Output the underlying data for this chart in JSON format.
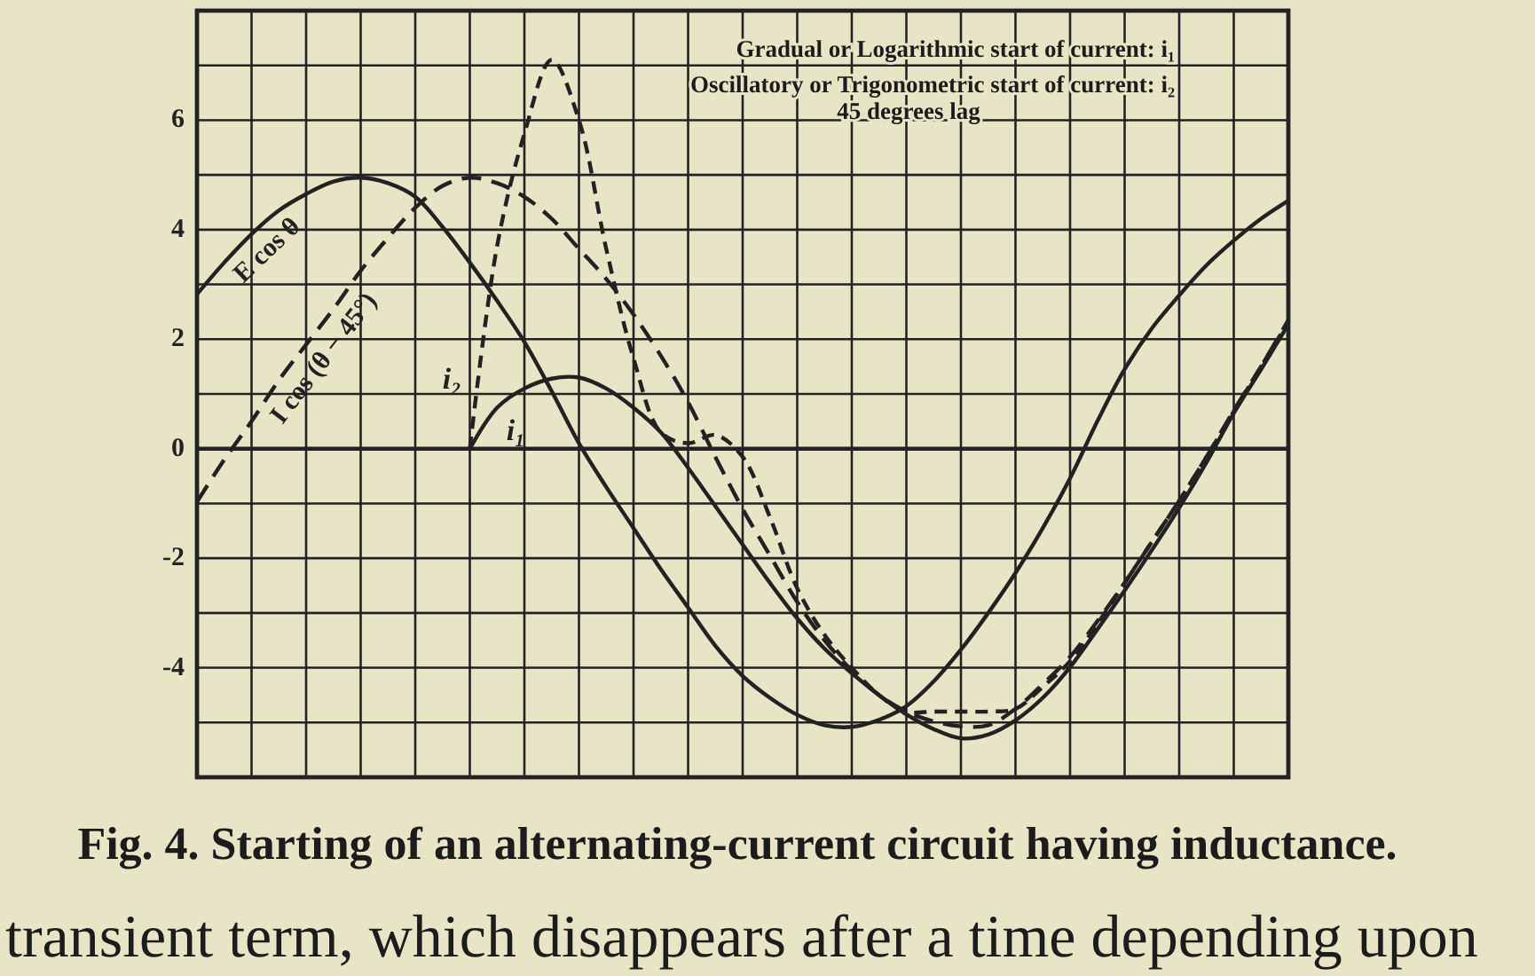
{
  "chart_data": {
    "type": "line",
    "title": "Fig. 4. Starting of an alternating-current circuit having inductance.",
    "categories": [
      null,
      null,
      null,
      null,
      null,
      null,
      null,
      null,
      null,
      null,
      null,
      null,
      null,
      null,
      null,
      null,
      null,
      null,
      null,
      null,
      null,
      null,
      null,
      null,
      null,
      null,
      null,
      null,
      null,
      null,
      null,
      null,
      null,
      null,
      null,
      null,
      null,
      null,
      null,
      null,
      null
    ],
    "ylim": [
      -6,
      8
    ],
    "yticks": [
      {
        "value": -6,
        "label": null
      },
      {
        "value": -5,
        "label": null
      },
      -4,
      {
        "value": -3,
        "label": null
      },
      -2,
      {
        "value": -1,
        "label": null
      },
      0,
      {
        "value": 1,
        "label": null
      },
      2,
      {
        "value": 3,
        "label": null
      },
      4,
      {
        "value": 5,
        "label": null
      },
      6,
      {
        "value": 7,
        "label": null
      },
      {
        "value": 8,
        "label": null
      }
    ],
    "tick_labels": "y",
    "grid": true,
    "series": [
      {
        "name": "E cos θ",
        "color": "#222222",
        "line_style": "solid",
        "values": [
          2.82,
          3.4,
          3.92,
          4.35,
          4.65,
          4.88,
          4.95,
          4.85,
          4.6,
          4.05,
          3.4,
          2.7,
          1.95,
          1.05,
          0.1,
          -0.7,
          -1.45,
          -2.2,
          -2.9,
          -3.6,
          -4.15,
          -4.55,
          -4.86,
          -5.05,
          -5.08,
          -4.95,
          -4.7,
          -4.25,
          -3.67,
          -3.0,
          -2.27,
          -1.45,
          -0.54,
          0.5,
          1.45,
          2.2,
          2.8,
          3.35,
          3.8,
          4.2,
          4.53
        ]
      },
      {
        "name": "I cos (θ − 45°)",
        "color": "#222222",
        "line_style": "dashed",
        "values": [
          -0.97,
          -0.2,
          0.5,
          1.25,
          1.9,
          2.55,
          3.25,
          3.85,
          4.4,
          4.8,
          4.95,
          4.85,
          4.6,
          4.2,
          3.65,
          3.1,
          2.45,
          1.7,
          0.85,
          -0.15,
          -1.1,
          -1.95,
          -2.8,
          -3.5,
          -4.05,
          -4.5,
          -4.8,
          -4.98,
          -5.07,
          -5.05,
          -4.75,
          -4.3,
          -3.8,
          -3.15,
          -2.45,
          -1.7,
          -0.95,
          -0.15,
          0.7,
          1.5,
          2.35
        ]
      },
      {
        "name": "i₁",
        "color": "#222222",
        "line_style": "solid",
        "values": [
          null,
          null,
          null,
          null,
          null,
          null,
          null,
          null,
          null,
          null,
          0,
          0.75,
          1.1,
          1.28,
          1.3,
          1.1,
          0.75,
          0.3,
          -0.35,
          -1.05,
          -1.75,
          -2.45,
          -3.1,
          -3.65,
          -4.1,
          -4.5,
          -4.85,
          -5.12,
          -5.29,
          -5.22,
          -4.96,
          -4.55,
          -3.99,
          -3.3,
          -2.59,
          -1.85,
          -1.08,
          -0.25,
          0.65,
          1.45,
          2.27
        ]
      },
      {
        "name": "i₂",
        "color": "#222222",
        "line_style": "dashed",
        "values": [
          null,
          null,
          null,
          null,
          null,
          null,
          null,
          null,
          null,
          null,
          0,
          3.7,
          5.75,
          7.1,
          6.0,
          3.65,
          1.65,
          0.3,
          0.1,
          0.25,
          -0.15,
          -1.25,
          -2.55,
          -3.4,
          -4.0,
          -4.5,
          -4.8,
          -4.8,
          -4.8,
          -4.8,
          -4.75,
          -4.35,
          -3.88,
          -3.2,
          -2.45,
          -1.7,
          -0.95,
          -0.15,
          0.68,
          1.5,
          2.32
        ]
      }
    ],
    "annotations": [
      "Gradual or Logarithmic start of current: i₁",
      "Oscillatory or Trigonometric start of current: i₂",
      "45 degrees lag",
      "transient term, which disappears after a time depending upon"
    ]
  }
}
